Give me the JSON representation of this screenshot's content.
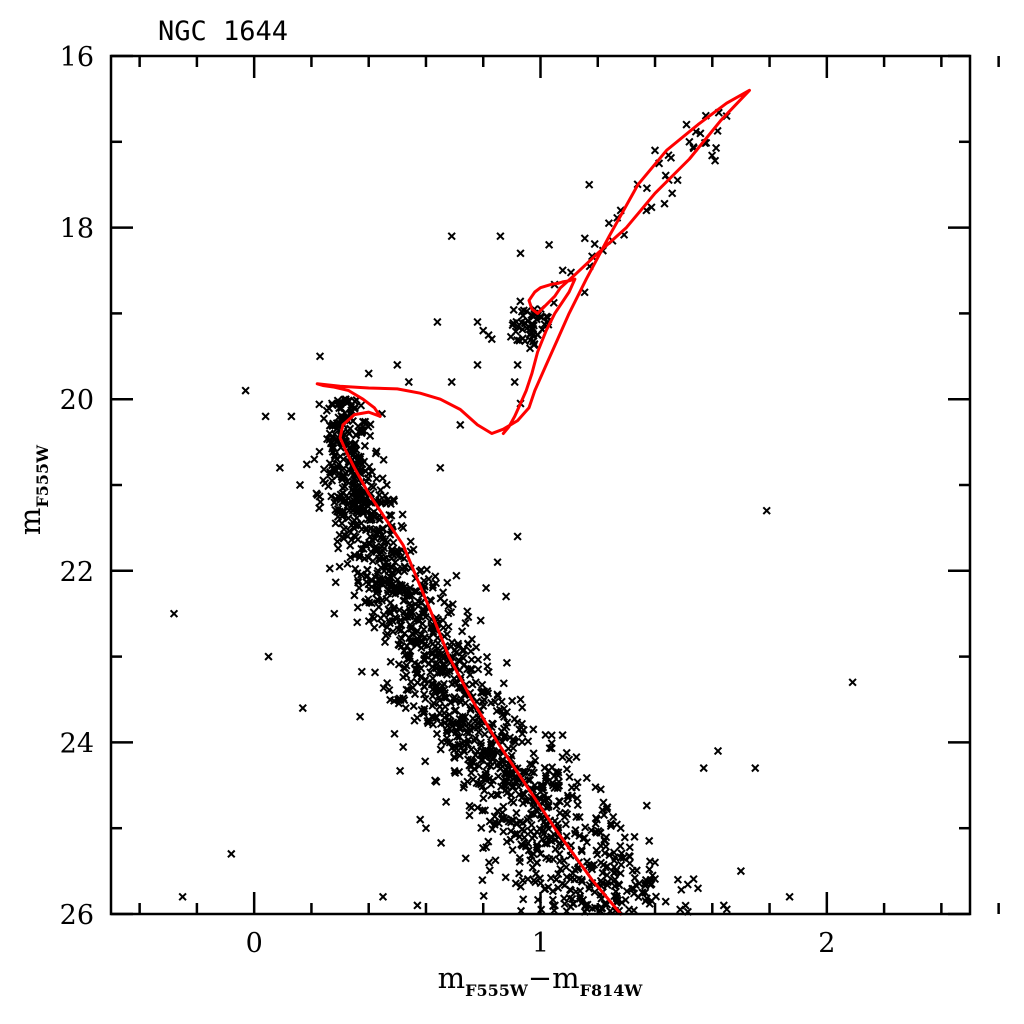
{
  "chart_data": {
    "type": "scatter",
    "title": "NGC 1644",
    "xlabel": {
      "main": "m",
      "sub1": "F555W",
      "op": "−",
      "main2": "m",
      "sub2": "F814W"
    },
    "ylabel": {
      "main": "m",
      "sub": "F555W"
    },
    "xlim": [
      -0.5,
      2.5
    ],
    "ylim": [
      26,
      16
    ],
    "y_inverted": true,
    "x_ticks": [
      0,
      1,
      2
    ],
    "x_tick_labels": [
      "0",
      "1",
      "2"
    ],
    "x_minor_step": 0.1,
    "x_tick_step": 0.2,
    "y_ticks": [
      16,
      18,
      20,
      22,
      24,
      26
    ],
    "y_tick_labels": [
      "16",
      "18",
      "20",
      "22",
      "24",
      "26"
    ],
    "y_tick_step": 1,
    "grid": false,
    "marker": "x",
    "colors": {
      "points": "#000000",
      "isochrone": "#ff0000",
      "frame": "#000000"
    },
    "isochrone": {
      "x": [
        1.28,
        1.18,
        1.05,
        0.95,
        0.85,
        0.76,
        0.68,
        0.62,
        0.57,
        0.52,
        0.46,
        0.4,
        0.35,
        0.32,
        0.3,
        0.31,
        0.35,
        0.4,
        0.44,
        0.42,
        0.38,
        0.33,
        0.28,
        0.24,
        0.22,
        0.3,
        0.4,
        0.5,
        0.58,
        0.65,
        0.72,
        0.78,
        0.83,
        0.87,
        0.92,
        0.96,
        0.98,
        1.02,
        1.06,
        1.1,
        1.16,
        1.24,
        1.34,
        1.44,
        1.55,
        1.65,
        1.73,
        1.63,
        1.52,
        1.4,
        1.3,
        1.2,
        1.12,
        1.07,
        1.05,
        1.02,
        0.99,
        0.97,
        0.96,
        0.97,
        0.98,
        1.0,
        1.02,
        1.04,
        1.06,
        1.08,
        1.1,
        1.12,
        1.1,
        1.05,
        1.02,
        0.99,
        0.97,
        0.95,
        0.93,
        0.91,
        0.89,
        0.87
      ],
      "y": [
        26.0,
        25.6,
        25.0,
        24.5,
        24.0,
        23.5,
        23.0,
        22.5,
        22.1,
        21.7,
        21.4,
        21.1,
        20.8,
        20.6,
        20.45,
        20.3,
        20.18,
        20.15,
        20.2,
        20.1,
        20.0,
        19.9,
        19.86,
        19.84,
        19.82,
        19.85,
        19.87,
        19.88,
        19.93,
        20.0,
        20.12,
        20.3,
        20.4,
        20.35,
        20.25,
        20.1,
        19.9,
        19.6,
        19.3,
        19.0,
        18.6,
        18.1,
        17.5,
        17.1,
        16.8,
        16.55,
        16.4,
        16.75,
        17.2,
        17.6,
        18.0,
        18.3,
        18.55,
        18.7,
        18.8,
        18.9,
        19.0,
        18.95,
        18.85,
        18.8,
        18.75,
        18.7,
        18.68,
        18.66,
        18.65,
        18.63,
        18.62,
        18.6,
        18.75,
        19.0,
        19.2,
        19.45,
        19.7,
        19.9,
        20.05,
        20.2,
        20.32,
        20.4
      ]
    }
  }
}
